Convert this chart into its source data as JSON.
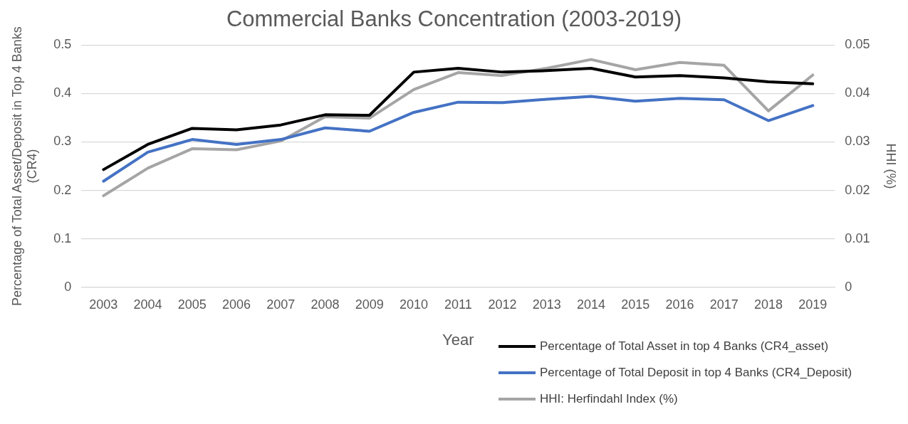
{
  "chart_data": {
    "type": "line",
    "title": "Commercial Banks Concentration (2003-2019)",
    "xlabel": "Year",
    "ylabel": "Percentage of Total Asset/Deposit in Top 4 Banks (CR4)",
    "y2label": "HHI (%)",
    "categories": [
      "2003",
      "2004",
      "2005",
      "2006",
      "2007",
      "2008",
      "2009",
      "2010",
      "2011",
      "2012",
      "2013",
      "2014",
      "2015",
      "2016",
      "2017",
      "2018",
      "2019"
    ],
    "series": [
      {
        "name": "Percentage of Total Asset in top 4 Banks (CR4_asset)",
        "color": "#000000",
        "values": [
          0.243,
          0.295,
          0.328,
          0.325,
          0.335,
          0.356,
          0.355,
          0.444,
          0.452,
          0.444,
          0.447,
          0.452,
          0.434,
          0.437,
          0.432,
          0.424,
          0.42
        ]
      },
      {
        "name": "Percentage of Total Deposit in top 4 Banks (CR4_Deposit)",
        "color": "#4472c4",
        "values": [
          0.219,
          0.279,
          0.305,
          0.295,
          0.305,
          0.329,
          0.322,
          0.361,
          0.382,
          0.381,
          0.388,
          0.394,
          0.384,
          0.39,
          0.387,
          0.344,
          0.375
        ]
      },
      {
        "name": "HHI: Herfindahl Index (%)",
        "color": "#a5a5a5",
        "axis": "y2",
        "values": [
          0.0189,
          0.0246,
          0.0286,
          0.0284,
          0.0302,
          0.0352,
          0.0349,
          0.0408,
          0.0443,
          0.0437,
          0.0452,
          0.047,
          0.0449,
          0.0464,
          0.0458,
          0.0364,
          0.0438
        ]
      }
    ],
    "ylim": [
      0,
      0.5
    ],
    "yticks": [
      0,
      0.1,
      0.2,
      0.3,
      0.4,
      0.5
    ],
    "y2lim": [
      0,
      0.05
    ],
    "y2ticks": [
      0,
      0.01,
      0.02,
      0.03,
      0.04,
      0.05
    ],
    "grid": "y",
    "legend": "bottom right",
    "marker": "none",
    "line_style": "solid"
  }
}
